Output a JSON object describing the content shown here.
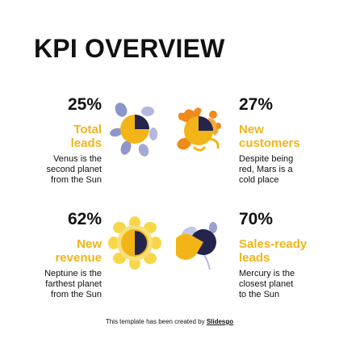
{
  "slide": {
    "title": "KPI OVERVIEW",
    "kpis": [
      {
        "percent": "25%",
        "label_line1": "Total",
        "label_line2": "leads",
        "desc_line1": "Venus is the",
        "desc_line2": "second planet",
        "desc_line3": "from the Sun",
        "icon": "pie-flower-icon",
        "value": 0.25
      },
      {
        "percent": "27%",
        "label_line1": "New",
        "label_line2": "customers",
        "desc_line1": "Despite being",
        "desc_line2": "red, Mars is a",
        "desc_line3": "cold place",
        "icon": "pie-splash-icon",
        "value": 0.27
      },
      {
        "percent": "62%",
        "label_line1": "New",
        "label_line2": "revenue",
        "desc_line1": "Neptune is the",
        "desc_line2": "farthest planet",
        "desc_line3": "from the Sun",
        "icon": "pie-sunflower-icon",
        "value": 0.62
      },
      {
        "percent": "70%",
        "label_line1": "Sales-ready",
        "label_line2": "leads",
        "desc_line1": "Mercury is the",
        "desc_line2": "closest planet",
        "desc_line3": "to the Sun",
        "icon": "pie-leaves-icon",
        "value": 0.7
      }
    ],
    "footer": {
      "text": "This template has been created by",
      "brand": "Slidesgo"
    }
  },
  "colors": {
    "accent": "#f2b417",
    "dark": "#23234d",
    "lavender": "#8e95cc",
    "orange": "#f08a1c",
    "text": "#111111",
    "background": "#ffffff"
  }
}
